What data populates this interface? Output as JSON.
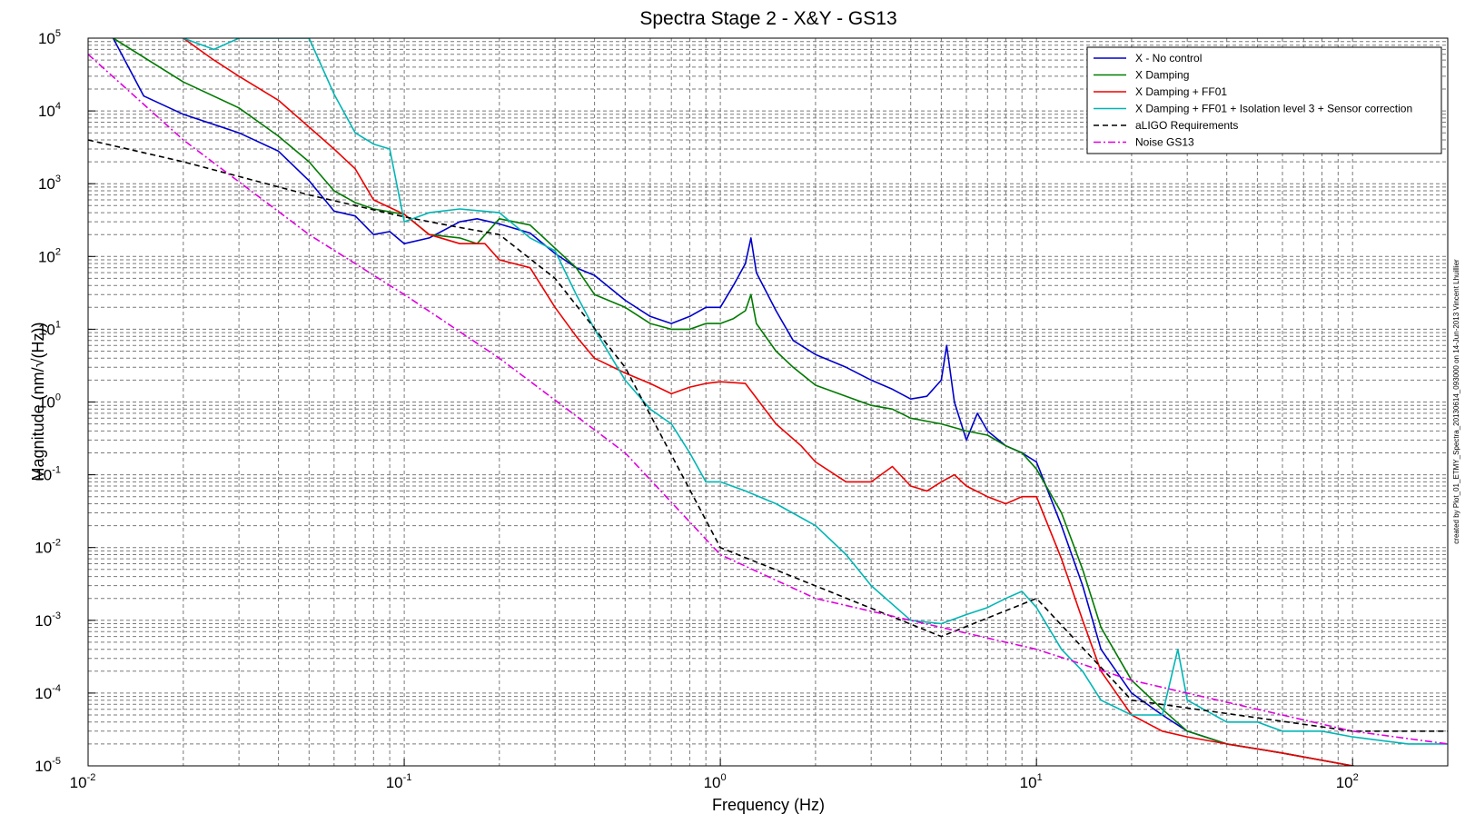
{
  "chart_data": {
    "type": "line",
    "title": "Spectra Stage 2 - X&Y - GS13",
    "xlabel": "Frequency (Hz)",
    "ylabel": "Magnitude (nm/√(Hz))",
    "x_scale": "log",
    "y_scale": "log",
    "xlim": [
      0.01,
      200
    ],
    "ylim": [
      1e-05,
      100000
    ],
    "grid": true,
    "legend_position": "top-right",
    "x_ticks": [
      {
        "base": "10",
        "exp": "-2",
        "value": 0.01
      },
      {
        "base": "10",
        "exp": "-1",
        "value": 0.1
      },
      {
        "base": "10",
        "exp": "0",
        "value": 1
      },
      {
        "base": "10",
        "exp": "1",
        "value": 10
      },
      {
        "base": "10",
        "exp": "2",
        "value": 100
      }
    ],
    "y_ticks": [
      {
        "base": "10",
        "exp": "-5",
        "value": 1e-05
      },
      {
        "base": "10",
        "exp": "-4",
        "value": 0.0001
      },
      {
        "base": "10",
        "exp": "-3",
        "value": 0.001
      },
      {
        "base": "10",
        "exp": "-2",
        "value": 0.01
      },
      {
        "base": "10",
        "exp": "-1",
        "value": 0.1
      },
      {
        "base": "10",
        "exp": "0",
        "value": 1
      },
      {
        "base": "10",
        "exp": "1",
        "value": 10
      },
      {
        "base": "10",
        "exp": "2",
        "value": 100
      },
      {
        "base": "10",
        "exp": "3",
        "value": 1000
      },
      {
        "base": "10",
        "exp": "4",
        "value": 10000
      },
      {
        "base": "10",
        "exp": "5",
        "value": 100000
      }
    ],
    "side_note": "created by Plot_01_ETMY_Spectra_20130614_093000 on 14-Jun-2013 Vincent Lhuillier",
    "series": [
      {
        "name": "X - No control",
        "color": "#0000cc",
        "dash": "solid",
        "points": [
          [
            0.012,
            100000
          ],
          [
            0.015,
            16000
          ],
          [
            0.02,
            9000
          ],
          [
            0.03,
            5000
          ],
          [
            0.04,
            2800
          ],
          [
            0.05,
            1100
          ],
          [
            0.06,
            420
          ],
          [
            0.07,
            360
          ],
          [
            0.08,
            200
          ],
          [
            0.09,
            220
          ],
          [
            0.1,
            150
          ],
          [
            0.12,
            180
          ],
          [
            0.15,
            300
          ],
          [
            0.17,
            330
          ],
          [
            0.2,
            280
          ],
          [
            0.25,
            210
          ],
          [
            0.3,
            110
          ],
          [
            0.35,
            70
          ],
          [
            0.4,
            55
          ],
          [
            0.5,
            25
          ],
          [
            0.6,
            15
          ],
          [
            0.7,
            12
          ],
          [
            0.8,
            15
          ],
          [
            0.9,
            20
          ],
          [
            1.0,
            20
          ],
          [
            1.1,
            40
          ],
          [
            1.2,
            80
          ],
          [
            1.25,
            180
          ],
          [
            1.3,
            60
          ],
          [
            1.5,
            18
          ],
          [
            1.7,
            7
          ],
          [
            2.0,
            4.5
          ],
          [
            2.5,
            3
          ],
          [
            3.0,
            2
          ],
          [
            3.5,
            1.5
          ],
          [
            4.0,
            1.1
          ],
          [
            4.5,
            1.2
          ],
          [
            5.0,
            2
          ],
          [
            5.2,
            6
          ],
          [
            5.5,
            1
          ],
          [
            6.0,
            0.3
          ],
          [
            6.5,
            0.7
          ],
          [
            7.0,
            0.4
          ],
          [
            8.0,
            0.25
          ],
          [
            9.0,
            0.2
          ],
          [
            10,
            0.15
          ],
          [
            12,
            0.02
          ],
          [
            14,
            0.003
          ],
          [
            16,
            0.0004
          ],
          [
            20,
            0.0001
          ],
          [
            25,
            5e-05
          ],
          [
            30,
            3e-05
          ],
          [
            40,
            2e-05
          ],
          [
            60,
            1.5e-05
          ],
          [
            100,
            1e-05
          ],
          [
            150,
            8e-06
          ],
          [
            200,
            6e-06
          ]
        ]
      },
      {
        "name": "X Damping",
        "color": "#007a00",
        "dash": "solid",
        "points": [
          [
            0.012,
            100000
          ],
          [
            0.02,
            25000
          ],
          [
            0.03,
            11000
          ],
          [
            0.04,
            4500
          ],
          [
            0.05,
            2000
          ],
          [
            0.06,
            800
          ],
          [
            0.07,
            550
          ],
          [
            0.08,
            450
          ],
          [
            0.1,
            380
          ],
          [
            0.12,
            200
          ],
          [
            0.15,
            180
          ],
          [
            0.17,
            150
          ],
          [
            0.2,
            330
          ],
          [
            0.25,
            270
          ],
          [
            0.3,
            130
          ],
          [
            0.35,
            70
          ],
          [
            0.4,
            30
          ],
          [
            0.5,
            20
          ],
          [
            0.6,
            12
          ],
          [
            0.7,
            10
          ],
          [
            0.8,
            10
          ],
          [
            0.9,
            12
          ],
          [
            1.0,
            12
          ],
          [
            1.1,
            14
          ],
          [
            1.2,
            18
          ],
          [
            1.25,
            30
          ],
          [
            1.3,
            12
          ],
          [
            1.5,
            5
          ],
          [
            1.7,
            3
          ],
          [
            2.0,
            1.7
          ],
          [
            2.5,
            1.2
          ],
          [
            3.0,
            0.9
          ],
          [
            3.5,
            0.8
          ],
          [
            4.0,
            0.6
          ],
          [
            5.0,
            0.5
          ],
          [
            6.0,
            0.4
          ],
          [
            7.0,
            0.35
          ],
          [
            8.0,
            0.25
          ],
          [
            9.0,
            0.2
          ],
          [
            10,
            0.12
          ],
          [
            12,
            0.03
          ],
          [
            14,
            0.005
          ],
          [
            16,
            0.0008
          ],
          [
            20,
            0.00015
          ],
          [
            25,
            6e-05
          ],
          [
            30,
            3e-05
          ],
          [
            40,
            2e-05
          ],
          [
            60,
            1.5e-05
          ],
          [
            100,
            1e-05
          ],
          [
            150,
            8e-06
          ],
          [
            200,
            6e-06
          ]
        ]
      },
      {
        "name": "X Damping + FF01",
        "color": "#ee0000",
        "dash": "solid",
        "points": [
          [
            0.02,
            100000
          ],
          [
            0.025,
            50000
          ],
          [
            0.03,
            30000
          ],
          [
            0.04,
            14000
          ],
          [
            0.05,
            6000
          ],
          [
            0.06,
            3000
          ],
          [
            0.07,
            1600
          ],
          [
            0.08,
            600
          ],
          [
            0.1,
            380
          ],
          [
            0.12,
            200
          ],
          [
            0.15,
            150
          ],
          [
            0.18,
            150
          ],
          [
            0.2,
            90
          ],
          [
            0.25,
            70
          ],
          [
            0.3,
            20
          ],
          [
            0.35,
            8
          ],
          [
            0.4,
            4
          ],
          [
            0.5,
            2.5
          ],
          [
            0.6,
            1.8
          ],
          [
            0.7,
            1.3
          ],
          [
            0.8,
            1.6
          ],
          [
            0.9,
            1.8
          ],
          [
            1.0,
            1.9
          ],
          [
            1.2,
            1.8
          ],
          [
            1.5,
            0.5
          ],
          [
            1.8,
            0.25
          ],
          [
            2.0,
            0.15
          ],
          [
            2.5,
            0.08
          ],
          [
            3.0,
            0.08
          ],
          [
            3.5,
            0.13
          ],
          [
            4.0,
            0.07
          ],
          [
            4.5,
            0.06
          ],
          [
            5.0,
            0.08
          ],
          [
            5.5,
            0.1
          ],
          [
            6.0,
            0.07
          ],
          [
            7.0,
            0.05
          ],
          [
            8.0,
            0.04
          ],
          [
            9.0,
            0.05
          ],
          [
            10,
            0.05
          ],
          [
            12,
            0.007
          ],
          [
            14,
            0.001
          ],
          [
            16,
            0.0002
          ],
          [
            20,
            5e-05
          ],
          [
            25,
            3e-05
          ],
          [
            30,
            2.5e-05
          ],
          [
            40,
            2e-05
          ],
          [
            60,
            1.5e-05
          ],
          [
            100,
            1e-05
          ],
          [
            150,
            8e-06
          ],
          [
            200,
            6e-06
          ]
        ]
      },
      {
        "name": "X Damping + FF01 + Isolation level 3 + Sensor correction",
        "color": "#00b5b5",
        "dash": "solid",
        "points": [
          [
            0.02,
            100000
          ],
          [
            0.025,
            70000
          ],
          [
            0.03,
            100000
          ],
          [
            0.05,
            100000
          ],
          [
            0.06,
            17000
          ],
          [
            0.07,
            5000
          ],
          [
            0.08,
            3500
          ],
          [
            0.09,
            3000
          ],
          [
            0.1,
            300
          ],
          [
            0.12,
            400
          ],
          [
            0.15,
            450
          ],
          [
            0.2,
            400
          ],
          [
            0.25,
            180
          ],
          [
            0.3,
            120
          ],
          [
            0.35,
            30
          ],
          [
            0.4,
            10
          ],
          [
            0.5,
            2
          ],
          [
            0.6,
            0.8
          ],
          [
            0.7,
            0.5
          ],
          [
            0.8,
            0.2
          ],
          [
            0.9,
            0.08
          ],
          [
            1.0,
            0.08
          ],
          [
            1.2,
            0.06
          ],
          [
            1.5,
            0.04
          ],
          [
            2.0,
            0.02
          ],
          [
            2.5,
            0.008
          ],
          [
            3.0,
            0.003
          ],
          [
            4.0,
            0.001
          ],
          [
            5.0,
            0.0009
          ],
          [
            6.0,
            0.0012
          ],
          [
            7.0,
            0.0015
          ],
          [
            8.0,
            0.002
          ],
          [
            9.0,
            0.0025
          ],
          [
            10,
            0.0015
          ],
          [
            12,
            0.0004
          ],
          [
            14,
            0.0002
          ],
          [
            16,
            8e-05
          ],
          [
            20,
            5e-05
          ],
          [
            25,
            5e-05
          ],
          [
            28,
            0.0004
          ],
          [
            30,
            8e-05
          ],
          [
            40,
            4e-05
          ],
          [
            50,
            4e-05
          ],
          [
            60,
            3e-05
          ],
          [
            80,
            3e-05
          ],
          [
            100,
            2.5e-05
          ],
          [
            150,
            2e-05
          ],
          [
            200,
            2e-05
          ]
        ]
      },
      {
        "name": "aLIGO Requirements",
        "color": "#000000",
        "dash": "dashed",
        "points": [
          [
            0.01,
            4000
          ],
          [
            0.02,
            2000
          ],
          [
            0.05,
            700
          ],
          [
            0.1,
            350
          ],
          [
            0.15,
            250
          ],
          [
            0.2,
            200
          ],
          [
            0.3,
            50
          ],
          [
            0.5,
            3
          ],
          [
            1.0,
            0.01
          ],
          [
            5.0,
            0.0006
          ],
          [
            10,
            0.002
          ],
          [
            20,
            8e-05
          ],
          [
            100,
            3e-05
          ],
          [
            200,
            3e-05
          ]
        ]
      },
      {
        "name": "Noise GS13",
        "color": "#e000e0",
        "dash": "dashdot",
        "points": [
          [
            0.01,
            60000
          ],
          [
            0.02,
            4000
          ],
          [
            0.05,
            200
          ],
          [
            0.1,
            30
          ],
          [
            0.2,
            4
          ],
          [
            0.5,
            0.2
          ],
          [
            1.0,
            0.008
          ],
          [
            2.0,
            0.002
          ],
          [
            5.0,
            0.0008
          ],
          [
            10,
            0.0004
          ],
          [
            20,
            0.00015
          ],
          [
            50,
            6e-05
          ],
          [
            100,
            3e-05
          ],
          [
            200,
            2e-05
          ]
        ]
      }
    ]
  }
}
